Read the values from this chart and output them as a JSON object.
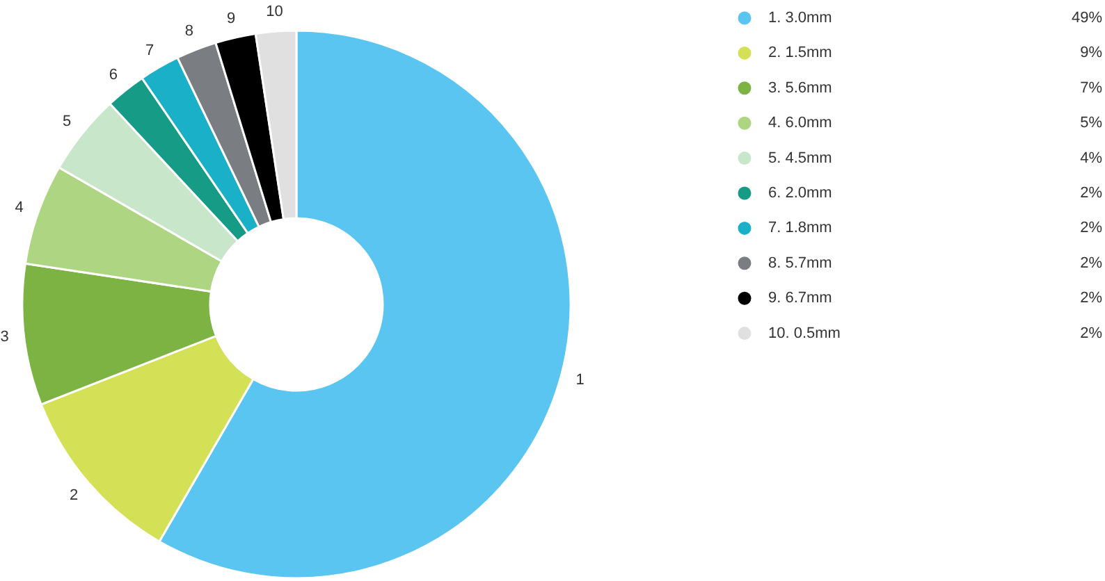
{
  "chart_data": {
    "type": "donut",
    "categories": [
      "1. 3.0mm",
      "2. 1.5mm",
      "3. 5.6mm",
      "4. 6.0mm",
      "5. 4.5mm",
      "6. 2.0mm",
      "7. 1.8mm",
      "8. 5.7mm",
      "9. 6.7mm",
      "10. 0.5mm"
    ],
    "values": [
      49,
      9,
      7,
      5,
      4,
      2,
      2,
      2,
      2,
      2
    ],
    "value_labels": [
      "49%",
      "9%",
      "7%",
      "5%",
      "4%",
      "2%",
      "2%",
      "2%",
      "2%",
      "2%"
    ],
    "colors": [
      "#5bc5f2",
      "#d4e157",
      "#7cb342",
      "#aed581",
      "#c8e6c9",
      "#169b87",
      "#1ab0c8",
      "#7a7d82",
      "#000000",
      "#e0e0e0"
    ],
    "annotations": [
      {
        "text": "1",
        "x": "1. 3.0mm"
      },
      {
        "text": "2",
        "x": "2. 1.5mm"
      },
      {
        "text": "3",
        "x": "3. 5.6mm"
      },
      {
        "text": "4",
        "x": "4. 6.0mm"
      },
      {
        "text": "5",
        "x": "5. 4.5mm"
      },
      {
        "text": "6",
        "x": "6. 2.0mm"
      },
      {
        "text": "7",
        "x": "7. 1.8mm"
      },
      {
        "text": "8",
        "x": "8. 5.7mm"
      },
      {
        "text": "9",
        "x": "9. 6.7mm"
      },
      {
        "text": "10",
        "x": "10. 0.5mm"
      }
    ],
    "legend": "right"
  }
}
